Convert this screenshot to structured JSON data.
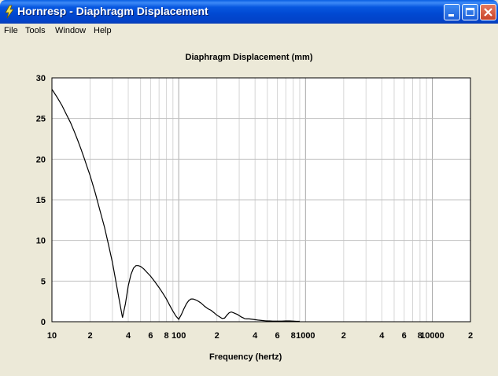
{
  "window": {
    "title": "Hornresp - Diaphragm Displacement"
  },
  "menu": [
    "File",
    "Tools",
    "Window",
    "Help"
  ],
  "colors": {
    "titlebar": "#0148D1",
    "background": "#ECE9D8",
    "grid": "#C0C0C0",
    "curve": "#000000"
  },
  "chart_data": {
    "type": "line",
    "title": "Diaphragm Displacement (mm)",
    "xlabel": "Frequency (hertz)",
    "ylabel": "",
    "xscale": "log",
    "xlim": [
      10,
      20000
    ],
    "ylim": [
      0,
      30
    ],
    "grid": true,
    "yticks": [
      "0",
      "5",
      "10",
      "15",
      "20",
      "25",
      "30"
    ],
    "xticks": [
      "10",
      "2",
      "4",
      "6",
      "8",
      "100",
      "2",
      "4",
      "6",
      "8",
      "1000",
      "2",
      "4",
      "6",
      "8",
      "10000",
      "2"
    ],
    "series": [
      {
        "x": [
          10,
          11,
          12,
          13,
          14,
          15,
          16,
          17,
          18,
          19,
          20,
          22,
          24,
          26,
          28,
          30,
          32,
          34,
          36,
          38,
          40,
          42,
          44,
          46,
          48,
          50,
          53,
          56,
          60,
          65,
          70,
          75,
          80,
          85,
          90,
          95,
          100,
          105,
          110,
          115,
          120,
          125,
          130,
          135,
          140,
          150,
          160,
          170,
          180,
          190,
          200,
          210,
          220,
          230,
          240,
          250,
          260,
          270,
          280,
          290,
          300,
          310,
          320,
          330,
          340,
          350,
          360,
          380,
          400,
          420,
          450,
          480,
          500,
          520,
          550,
          600,
          650,
          700,
          750,
          800,
          850,
          900
        ],
        "y": [
          28.6,
          27.6,
          26.6,
          25.5,
          24.5,
          23.4,
          22.3,
          21.2,
          20.1,
          19.0,
          18.0,
          15.8,
          13.6,
          11.6,
          9.4,
          7.3,
          4.9,
          2.6,
          0.5,
          2.2,
          4.4,
          5.8,
          6.6,
          6.9,
          6.9,
          6.8,
          6.5,
          6.1,
          5.6,
          4.9,
          4.2,
          3.5,
          2.8,
          2.0,
          1.3,
          0.7,
          0.3,
          0.9,
          1.6,
          2.2,
          2.6,
          2.8,
          2.8,
          2.7,
          2.6,
          2.3,
          1.9,
          1.6,
          1.4,
          1.1,
          0.8,
          0.6,
          0.4,
          0.45,
          0.8,
          1.1,
          1.2,
          1.1,
          1.0,
          0.9,
          0.75,
          0.6,
          0.5,
          0.4,
          0.35,
          0.35,
          0.35,
          0.3,
          0.25,
          0.2,
          0.15,
          0.12,
          0.1,
          0.1,
          0.08,
          0.08,
          0.08,
          0.1,
          0.1,
          0.08,
          0.05,
          0.05
        ]
      }
    ]
  }
}
